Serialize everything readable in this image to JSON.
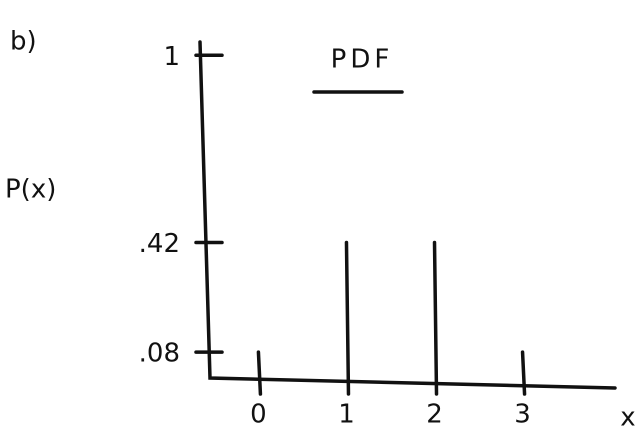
{
  "chart_data": {
    "type": "stem",
    "annotation": "b)",
    "title": "PDF",
    "y_label": "P(x)",
    "x_label": "x",
    "x": [
      0,
      1,
      2,
      3
    ],
    "values": [
      0.08,
      0.42,
      0.42,
      0.08
    ],
    "color": "#111111",
    "xlim": [
      -0.55,
      4.05
    ],
    "xticks": [
      0,
      1,
      2,
      3
    ],
    "ylim": [
      0,
      1.1
    ],
    "yticks": [
      1,
      {
        "value": 0.42,
        "label": ".42"
      },
      {
        "value": 0.08,
        "label": ".08"
      }
    ]
  }
}
